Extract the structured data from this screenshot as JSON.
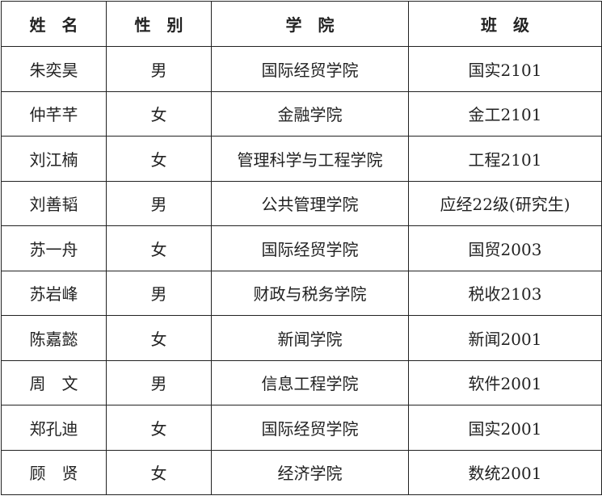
{
  "headers": [
    "姓　名",
    "性　别",
    "学　院",
    "班　级"
  ],
  "rows": [
    [
      "朱奕昊",
      "男",
      "国际经贸学院",
      "国实2101"
    ],
    [
      "仲芊芊",
      "女",
      "金融学院",
      "金工2101"
    ],
    [
      "刘江楠",
      "女",
      "管理科学与工程学院",
      "工程2101"
    ],
    [
      "刘善韬",
      "男",
      "公共管理学院",
      "应经22级(研究生)"
    ],
    [
      "苏一舟",
      "女",
      "国际经贸学院",
      "国贸2003"
    ],
    [
      "苏岩峰",
      "男",
      "财政与税务学院",
      "税收2103"
    ],
    [
      "陈嘉懿",
      "女",
      "新闻学院",
      "新闻2001"
    ],
    [
      "周　文",
      "男",
      "信息工程学院",
      "软件2001"
    ],
    [
      "郑孔迪",
      "女",
      "国际经贸学院",
      "国实2001"
    ],
    [
      "顾　贤",
      "女",
      "经济学院",
      "数统2001"
    ]
  ]
}
